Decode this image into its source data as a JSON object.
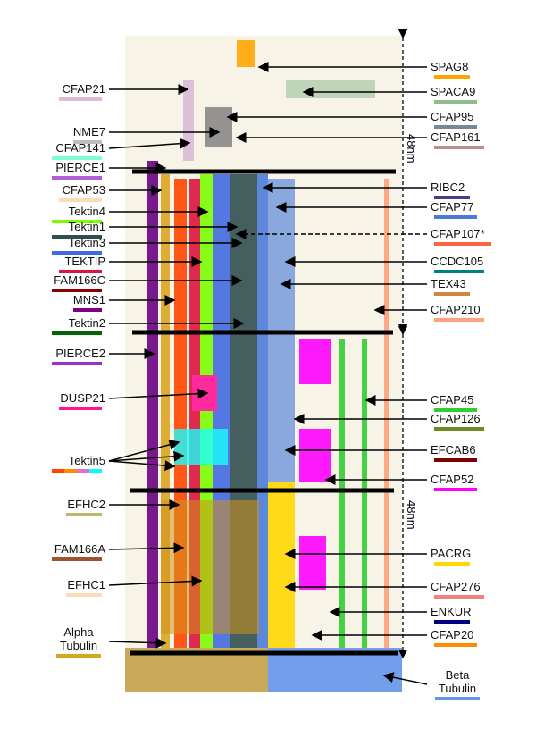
{
  "scale_label": "48nm",
  "left_labels": [
    {
      "text": "CFAP21",
      "color": "#d8bcd8"
    },
    {
      "text": "NME7",
      "color": "#bdbdbd"
    },
    {
      "text": "CFAP141",
      "color": "#7fffd4"
    },
    {
      "text": "PIERCE1",
      "color": "#b05fd8"
    },
    {
      "text": "CFAP53",
      "color": "#f5deb3"
    },
    {
      "text": "Tektin4",
      "color": "#7cfc00"
    },
    {
      "text": "Tektin1",
      "color": "#2f4f4f"
    },
    {
      "text": "Tektin3",
      "color": "#4169e1"
    },
    {
      "text": "TEKTIP",
      "color": "#dc143c"
    },
    {
      "text": "FAM166C",
      "color": "#8b0000"
    },
    {
      "text": "MNS1",
      "color": "#800080"
    },
    {
      "text": "Tektin2",
      "color": "#006400"
    },
    {
      "text": "PIERCE2",
      "color": "#9932cc"
    },
    {
      "text": "DUSP21",
      "color": "#ff1493"
    },
    {
      "text": "Tektin5",
      "colors": [
        "#ff4500",
        "#ff8c00",
        "#da70d6",
        "#00ffff"
      ]
    },
    {
      "text": "EFHC2",
      "color": "#bdb76b"
    },
    {
      "text": "FAM166A",
      "color": "#a0522d"
    },
    {
      "text": "EFHC1",
      "color": "#ffdab9"
    },
    {
      "text": "Alpha Tubulin",
      "color": "#daa520"
    }
  ],
  "right_labels": [
    {
      "text": "SPAG8",
      "color": "#ffa500"
    },
    {
      "text": "SPACA9",
      "color": "#8fbc8f"
    },
    {
      "text": "CFAP95",
      "color": "#778899"
    },
    {
      "text": "CFAP161",
      "color": "#bc8f8f"
    },
    {
      "text": "RIBC2",
      "color": "#483d8b"
    },
    {
      "text": "CFAP77",
      "color": "#4a7bd8"
    },
    {
      "text": "CFAP107*",
      "color": "#ff6347"
    },
    {
      "text": "CCDC105",
      "color": "#008080"
    },
    {
      "text": "TEX43",
      "color": "#cd853f"
    },
    {
      "text": "CFAP210",
      "color": "#ffa07a"
    },
    {
      "text": "CFAP45",
      "color": "#32cd32"
    },
    {
      "text": "CFAP126",
      "color": "#6b8e23"
    },
    {
      "text": "EFCAB6",
      "color": "#800000"
    },
    {
      "text": "CFAP52",
      "color": "#ff00ff"
    },
    {
      "text": "PACRG",
      "color": "#ffd700"
    },
    {
      "text": "CFAP276",
      "color": "#f08080"
    },
    {
      "text": "ENKUR",
      "color": "#000080"
    },
    {
      "text": "CFAP20",
      "color": "#ff8c00"
    },
    {
      "text": "Beta Tubulin",
      "color": "#6495ed"
    }
  ]
}
